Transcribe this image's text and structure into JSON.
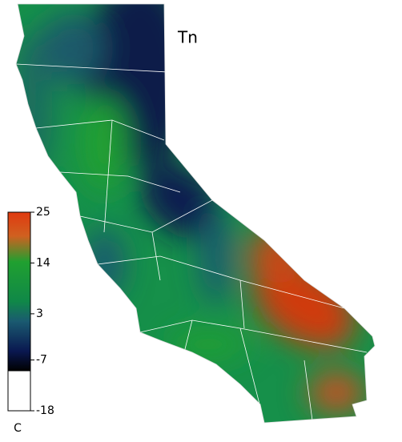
{
  "title": "Tn",
  "colorbar": {
    "lim": [
      -18,
      25
    ],
    "ticks": [
      25,
      14,
      3,
      -7,
      -18
    ],
    "unit": "C"
  }
}
